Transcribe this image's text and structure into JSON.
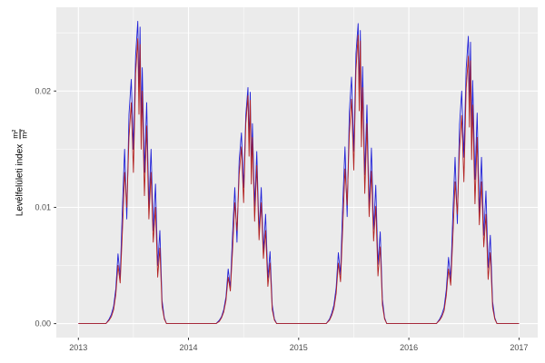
{
  "chart_data": {
    "type": "line",
    "title": "",
    "xlabel": "",
    "ylabel": "Levélfelületi index",
    "ylabel_frac_num": "m²",
    "ylabel_frac_den": "m²",
    "legend_position": "none",
    "grid": true,
    "xlim": [
      2012.8,
      2017.17
    ],
    "ylim": [
      -0.0012,
      0.0272
    ],
    "x_ticks": [
      "2013",
      "2014",
      "2015",
      "2016",
      "2017"
    ],
    "x_tick_values": [
      2013,
      2014,
      2015,
      2016,
      2017
    ],
    "y_ticks": [
      "0.00",
      "0.01",
      "0.02"
    ],
    "y_tick_values": [
      0,
      0.01,
      0.02
    ],
    "x_minor": [
      2013.5,
      2014.5,
      2015.5,
      2016.5
    ],
    "y_minor": [
      0.005,
      0.015,
      0.025
    ],
    "colors": {
      "panel_bg": "#EBEBEB",
      "grid": "#FFFFFF",
      "tick_text": "#4D4D4D",
      "tick_mark": "#333333"
    },
    "x": [
      2013.0,
      2013.1,
      2013.2,
      2013.25,
      2013.28,
      2013.3,
      2013.32,
      2013.34,
      2013.36,
      2013.38,
      2013.4,
      2013.42,
      2013.44,
      2013.46,
      2013.48,
      2013.5,
      2013.52,
      2013.54,
      2013.55,
      2013.56,
      2013.57,
      2013.58,
      2013.6,
      2013.62,
      2013.64,
      2013.66,
      2013.68,
      2013.7,
      2013.72,
      2013.74,
      2013.76,
      2013.78,
      2013.8,
      2013.9,
      2014.0,
      2014.1,
      2014.2,
      2014.25,
      2014.28,
      2014.3,
      2014.32,
      2014.34,
      2014.36,
      2014.38,
      2014.4,
      2014.42,
      2014.44,
      2014.46,
      2014.48,
      2014.5,
      2014.52,
      2014.54,
      2014.55,
      2014.56,
      2014.57,
      2014.58,
      2014.6,
      2014.62,
      2014.64,
      2014.66,
      2014.68,
      2014.7,
      2014.72,
      2014.74,
      2014.76,
      2014.78,
      2014.8,
      2014.9,
      2015.0,
      2015.1,
      2015.2,
      2015.25,
      2015.28,
      2015.3,
      2015.32,
      2015.34,
      2015.36,
      2015.38,
      2015.4,
      2015.42,
      2015.44,
      2015.46,
      2015.48,
      2015.5,
      2015.52,
      2015.54,
      2015.55,
      2015.56,
      2015.57,
      2015.58,
      2015.6,
      2015.62,
      2015.64,
      2015.66,
      2015.68,
      2015.7,
      2015.72,
      2015.74,
      2015.76,
      2015.78,
      2015.8,
      2015.9,
      2016.0,
      2016.1,
      2016.2,
      2016.25,
      2016.28,
      2016.3,
      2016.32,
      2016.34,
      2016.36,
      2016.38,
      2016.4,
      2016.42,
      2016.44,
      2016.46,
      2016.48,
      2016.5,
      2016.52,
      2016.54,
      2016.55,
      2016.56,
      2016.57,
      2016.58,
      2016.6,
      2016.62,
      2016.64,
      2016.66,
      2016.68,
      2016.7,
      2016.72,
      2016.74,
      2016.76,
      2016.78,
      2016.8,
      2016.9,
      2017.0
    ],
    "series": [
      {
        "name": "blue",
        "color": "#2121D8",
        "values": [
          0,
          0,
          0,
          0,
          0.0004,
          0.0008,
          0.0015,
          0.003,
          0.006,
          0.004,
          0.01,
          0.015,
          0.009,
          0.018,
          0.021,
          0.015,
          0.023,
          0.026,
          0.02,
          0.0255,
          0.017,
          0.022,
          0.013,
          0.019,
          0.01,
          0.015,
          0.008,
          0.012,
          0.005,
          0.008,
          0.002,
          0.0005,
          0,
          0,
          0,
          0,
          0,
          0,
          0.0003,
          0.0006,
          0.0012,
          0.0023,
          0.0047,
          0.0031,
          0.0078,
          0.0117,
          0.007,
          0.014,
          0.0164,
          0.0117,
          0.0179,
          0.0203,
          0.0156,
          0.0199,
          0.0133,
          0.0172,
          0.0101,
          0.0148,
          0.0078,
          0.0117,
          0.0062,
          0.0094,
          0.0039,
          0.0062,
          0.0016,
          0.0004,
          0,
          0,
          0,
          0,
          0,
          0,
          0.0004,
          0.0009,
          0.0016,
          0.0031,
          0.0061,
          0.0042,
          0.0102,
          0.0152,
          0.0092,
          0.0182,
          0.0212,
          0.0148,
          0.0232,
          0.0258,
          0.0198,
          0.0252,
          0.0168,
          0.0221,
          0.0128,
          0.0188,
          0.0099,
          0.0151,
          0.0081,
          0.0119,
          0.0051,
          0.0079,
          0.0021,
          0.0005,
          0,
          0,
          0,
          0,
          0,
          0,
          0.0004,
          0.0008,
          0.0014,
          0.0029,
          0.0057,
          0.0038,
          0.0095,
          0.0143,
          0.0086,
          0.0171,
          0.02,
          0.0143,
          0.0219,
          0.0247,
          0.019,
          0.0242,
          0.0162,
          0.0209,
          0.0124,
          0.0181,
          0.0095,
          0.0143,
          0.0076,
          0.0114,
          0.0048,
          0.0076,
          0.0019,
          0.0005,
          0,
          0,
          0
        ]
      },
      {
        "name": "red",
        "color": "#B22222",
        "values": [
          0,
          0,
          0,
          0,
          0.0003,
          0.0006,
          0.0012,
          0.0025,
          0.005,
          0.0035,
          0.008,
          0.013,
          0.01,
          0.016,
          0.019,
          0.013,
          0.0215,
          0.0245,
          0.018,
          0.024,
          0.015,
          0.02,
          0.011,
          0.017,
          0.009,
          0.013,
          0.007,
          0.01,
          0.004,
          0.0065,
          0.0015,
          0.0004,
          0,
          0,
          0,
          0,
          0,
          0,
          0.0002,
          0.0005,
          0.001,
          0.002,
          0.004,
          0.0028,
          0.0064,
          0.0104,
          0.008,
          0.0128,
          0.0152,
          0.0104,
          0.0172,
          0.0196,
          0.0144,
          0.0192,
          0.012,
          0.016,
          0.0088,
          0.0136,
          0.0072,
          0.0104,
          0.0056,
          0.008,
          0.0032,
          0.0052,
          0.0012,
          0.0003,
          0,
          0,
          0,
          0,
          0,
          0,
          0.0003,
          0.0007,
          0.0013,
          0.0026,
          0.0052,
          0.0036,
          0.0082,
          0.0133,
          0.0102,
          0.0163,
          0.0193,
          0.0132,
          0.0218,
          0.0248,
          0.0183,
          0.0243,
          0.0152,
          0.0203,
          0.0112,
          0.0172,
          0.0092,
          0.0131,
          0.0071,
          0.0101,
          0.0041,
          0.0066,
          0.0016,
          0.0004,
          0,
          0,
          0,
          0,
          0,
          0,
          0.0003,
          0.0006,
          0.0011,
          0.0024,
          0.0047,
          0.0033,
          0.0075,
          0.0122,
          0.0094,
          0.015,
          0.0179,
          0.0122,
          0.0202,
          0.023,
          0.0169,
          0.0226,
          0.0141,
          0.0188,
          0.0103,
          0.016,
          0.0085,
          0.0122,
          0.0066,
          0.0094,
          0.0038,
          0.0061,
          0.0014,
          0.0004,
          0,
          0,
          0
        ]
      }
    ]
  }
}
